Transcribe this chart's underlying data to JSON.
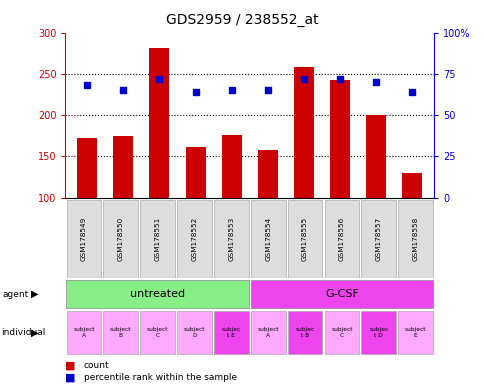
{
  "title": "GDS2959 / 238552_at",
  "samples": [
    "GSM178549",
    "GSM178550",
    "GSM178551",
    "GSM178552",
    "GSM178553",
    "GSM178554",
    "GSM178555",
    "GSM178556",
    "GSM178557",
    "GSM178558"
  ],
  "counts": [
    172,
    175,
    281,
    161,
    176,
    158,
    258,
    243,
    200,
    130
  ],
  "percentiles": [
    68,
    65,
    72,
    64,
    65,
    65,
    72,
    72,
    70,
    64
  ],
  "ylim_left": [
    100,
    300
  ],
  "ylim_right": [
    0,
    100
  ],
  "yticks_left": [
    100,
    150,
    200,
    250,
    300
  ],
  "yticks_right": [
    0,
    25,
    50,
    75,
    100
  ],
  "bar_color": "#cc0000",
  "dot_color": "#0000cc",
  "agent_labels": [
    "untreated",
    "G-CSF"
  ],
  "agent_ranges": [
    [
      0,
      5
    ],
    [
      5,
      10
    ]
  ],
  "agent_colors": [
    "#88ee88",
    "#ee44ee"
  ],
  "individual_labels": [
    "subject\nA",
    "subject\nB",
    "subject\nC",
    "subject\nD",
    "subjec\nt E",
    "subject\nA",
    "subjec\nt B",
    "subject\nC",
    "subjec\nt D",
    "subject\nE"
  ],
  "individual_highlight": [
    false,
    false,
    false,
    false,
    true,
    false,
    true,
    false,
    true,
    false
  ],
  "individual_color_normal": "#ffaaff",
  "individual_color_highlight": "#ee44ee",
  "tick_label_bg": "#dddddd",
  "left_label_color": "#cc0000",
  "right_label_color": "#0000cc",
  "grid_lines": [
    150,
    200,
    250
  ]
}
